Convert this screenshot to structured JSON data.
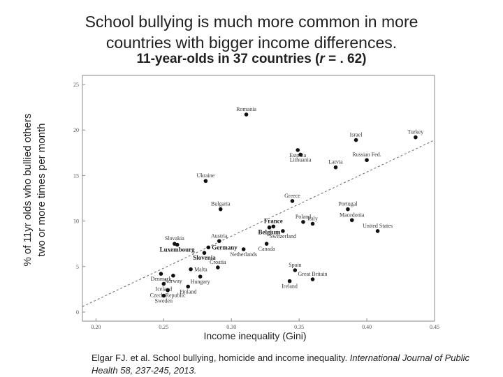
{
  "header": {
    "title_line1": "School bullying is much more common in more",
    "title_line2": "countries with bigger income differences.",
    "subtitle_prefix": "11-year-olds in 37 countries (",
    "subtitle_r": "r",
    "subtitle_suffix": " = . 62)"
  },
  "citation": {
    "text": "Elgar FJ. et al. School bullying, homicide and income inequality. ",
    "journal": "International Journal of Public Health 58, 237-245, 2013."
  },
  "chart_data": {
    "type": "scatter",
    "xlabel": "Income inequality (Gini)",
    "ylabel_line1": "% of 11yr olds who bullied others",
    "ylabel_line2": "two or more times per month",
    "xlim": [
      0.19,
      0.45
    ],
    "ylim": [
      -1,
      26
    ],
    "xticks": [
      0.2,
      0.25,
      0.3,
      0.35,
      0.4,
      0.45
    ],
    "xtick_labels": [
      "0.20",
      "0.25",
      "0.30",
      "0.35",
      "0.40",
      "0.45"
    ],
    "yticks": [
      0,
      5,
      10,
      15,
      20,
      25
    ],
    "ytick_labels": [
      "0",
      "5",
      "10",
      "15",
      "20",
      "25"
    ],
    "grid": false,
    "trendline": {
      "style": "dashed",
      "from": [
        0.19,
        0.6
      ],
      "to": [
        0.45,
        18.9
      ]
    },
    "points": [
      {
        "label": "Romania",
        "x": 0.311,
        "y": 21.7,
        "pos": "above"
      },
      {
        "label": "Turkey",
        "x": 0.436,
        "y": 19.2,
        "pos": "above"
      },
      {
        "label": "Israel",
        "x": 0.392,
        "y": 18.9,
        "pos": "above"
      },
      {
        "label": "Estonia",
        "x": 0.349,
        "y": 17.8,
        "pos": "below"
      },
      {
        "label": "Russian Fed.",
        "x": 0.4,
        "y": 16.7,
        "pos": "above"
      },
      {
        "label": "Lithuania",
        "x": 0.351,
        "y": 17.3,
        "pos": "below"
      },
      {
        "label": "Latvia",
        "x": 0.377,
        "y": 15.9,
        "pos": "above"
      },
      {
        "label": "Ukraine",
        "x": 0.281,
        "y": 14.4,
        "pos": "above"
      },
      {
        "label": "Greece",
        "x": 0.345,
        "y": 12.2,
        "pos": "above"
      },
      {
        "label": "Bulgaria",
        "x": 0.292,
        "y": 11.3,
        "pos": "above"
      },
      {
        "label": "Portugal",
        "x": 0.386,
        "y": 11.3,
        "pos": "above"
      },
      {
        "label": "Macedonia",
        "x": 0.389,
        "y": 10.1,
        "pos": "above"
      },
      {
        "label": "Italy",
        "x": 0.36,
        "y": 9.7,
        "pos": "above"
      },
      {
        "label": "Poland",
        "x": 0.353,
        "y": 9.9,
        "pos": "above"
      },
      {
        "label": "France",
        "x": 0.331,
        "y": 9.4,
        "pos": "above"
      },
      {
        "label": "Belgium",
        "x": 0.328,
        "y": 9.3,
        "pos": "below"
      },
      {
        "label": "United States",
        "x": 0.408,
        "y": 8.9,
        "pos": "above"
      },
      {
        "label": "Switzerland",
        "x": 0.338,
        "y": 8.9,
        "pos": "below"
      },
      {
        "label": "Austria",
        "x": 0.291,
        "y": 7.8,
        "pos": "above"
      },
      {
        "label": "Canada",
        "x": 0.326,
        "y": 7.5,
        "pos": "below"
      },
      {
        "label": "Slovakia",
        "x": 0.258,
        "y": 7.5,
        "pos": "above"
      },
      {
        "label": "Luxembourg",
        "x": 0.26,
        "y": 7.4,
        "pos": "below"
      },
      {
        "label": "Germany",
        "x": 0.283,
        "y": 7.1,
        "pos": "right"
      },
      {
        "label": "Netherlands",
        "x": 0.309,
        "y": 6.9,
        "pos": "below"
      },
      {
        "label": "Slovenia",
        "x": 0.28,
        "y": 6.5,
        "pos": "below"
      },
      {
        "label": "Croatia",
        "x": 0.29,
        "y": 4.9,
        "pos": "above"
      },
      {
        "label": "Malta",
        "x": 0.27,
        "y": 4.7,
        "pos": "right"
      },
      {
        "label": "Spain",
        "x": 0.347,
        "y": 4.6,
        "pos": "above"
      },
      {
        "label": "Denmark",
        "x": 0.248,
        "y": 4.2,
        "pos": "below"
      },
      {
        "label": "Norway",
        "x": 0.257,
        "y": 4.0,
        "pos": "below"
      },
      {
        "label": "Great Britain",
        "x": 0.36,
        "y": 3.6,
        "pos": "above"
      },
      {
        "label": "Hungary",
        "x": 0.277,
        "y": 3.9,
        "pos": "below"
      },
      {
        "label": "Ireland",
        "x": 0.343,
        "y": 3.4,
        "pos": "below"
      },
      {
        "label": "Iceland",
        "x": 0.25,
        "y": 3.1,
        "pos": "below"
      },
      {
        "label": "Finland",
        "x": 0.268,
        "y": 2.8,
        "pos": "below"
      },
      {
        "label": "Czech Republic",
        "x": 0.253,
        "y": 2.4,
        "pos": "below"
      },
      {
        "label": "Sweden",
        "x": 0.25,
        "y": 1.8,
        "pos": "below"
      }
    ]
  }
}
